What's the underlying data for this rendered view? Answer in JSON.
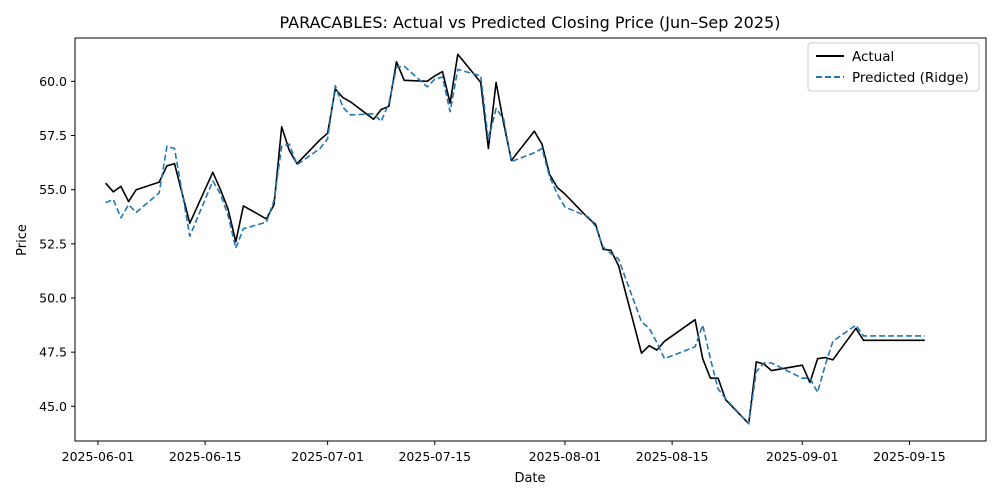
{
  "chart_data": {
    "type": "line",
    "title": "PARACABLES: Actual vs Predicted Closing Price (Jun–Sep 2025)",
    "xlabel": "Date",
    "ylabel": "Price",
    "xlim": [
      "2025-05-29",
      "2025-09-25"
    ],
    "ylim": [
      43.4,
      62.0
    ],
    "x_ticks": [
      "2025-06-01",
      "2025-06-15",
      "2025-07-01",
      "2025-07-15",
      "2025-08-01",
      "2025-08-15",
      "2025-09-01",
      "2025-09-15"
    ],
    "y_ticks": [
      45.0,
      47.5,
      50.0,
      52.5,
      55.0,
      57.5,
      60.0
    ],
    "y_tick_labels": [
      "45.0",
      "47.5",
      "50.0",
      "52.5",
      "55.0",
      "57.5",
      "60.0"
    ],
    "legend_position": "top-right",
    "grid": false,
    "dates": [
      "2025-06-02",
      "2025-06-03",
      "2025-06-04",
      "2025-06-05",
      "2025-06-06",
      "2025-06-09",
      "2025-06-10",
      "2025-06-11",
      "2025-06-13",
      "2025-06-16",
      "2025-06-17",
      "2025-06-18",
      "2025-06-19",
      "2025-06-20",
      "2025-06-23",
      "2025-06-24",
      "2025-06-25",
      "2025-06-26",
      "2025-06-27",
      "2025-06-30",
      "2025-07-01",
      "2025-07-02",
      "2025-07-03",
      "2025-07-04",
      "2025-07-07",
      "2025-07-08",
      "2025-07-09",
      "2025-07-10",
      "2025-07-11",
      "2025-07-14",
      "2025-07-15",
      "2025-07-16",
      "2025-07-17",
      "2025-07-18",
      "2025-07-21",
      "2025-07-22",
      "2025-07-23",
      "2025-07-24",
      "2025-07-25",
      "2025-07-28",
      "2025-07-29",
      "2025-07-30",
      "2025-07-31",
      "2025-08-01",
      "2025-08-04",
      "2025-08-05",
      "2025-08-06",
      "2025-08-07",
      "2025-08-08",
      "2025-08-11",
      "2025-08-12",
      "2025-08-13",
      "2025-08-14",
      "2025-08-18",
      "2025-08-19",
      "2025-08-20",
      "2025-08-21",
      "2025-08-22",
      "2025-08-25",
      "2025-08-26",
      "2025-08-27",
      "2025-08-28",
      "2025-09-01",
      "2025-09-02",
      "2025-09-03",
      "2025-09-04",
      "2025-09-05",
      "2025-09-08",
      "2025-09-09",
      "2025-09-10",
      "2025-09-11",
      "2025-09-12",
      "2025-09-15",
      "2025-09-16",
      "2025-09-17"
    ],
    "series": [
      {
        "name": "Actual",
        "color": "#000000",
        "dash": "solid",
        "values": [
          55.3,
          54.9,
          55.15,
          54.45,
          55.0,
          55.35,
          56.1,
          56.2,
          53.45,
          55.8,
          55.0,
          54.1,
          52.6,
          54.25,
          53.65,
          54.3,
          57.9,
          56.8,
          56.2,
          57.3,
          57.6,
          59.65,
          59.25,
          59.05,
          58.25,
          58.7,
          58.85,
          60.9,
          60.05,
          60.0,
          60.25,
          60.45,
          59.0,
          61.25,
          59.95,
          56.9,
          59.95,
          58.05,
          56.35,
          57.7,
          57.1,
          55.7,
          55.1,
          54.8,
          53.7,
          53.4,
          52.25,
          52.2,
          51.5,
          47.45,
          47.8,
          47.6,
          48.0,
          49.0,
          47.2,
          46.3,
          46.3,
          45.3,
          44.2,
          47.05,
          46.95,
          46.65,
          46.9,
          46.1,
          47.2,
          47.25,
          47.15,
          48.6,
          48.05,
          48.05,
          48.05,
          48.05,
          48.05,
          48.05,
          48.05
        ],
        "values_note": ""
      },
      {
        "name": "Predicted (Ridge)",
        "color": "#1f77b4",
        "dash": "dashed",
        "values": [
          54.4,
          54.55,
          53.7,
          54.3,
          53.95,
          54.85,
          57.0,
          56.9,
          52.85,
          55.4,
          54.8,
          53.8,
          52.3,
          53.2,
          53.5,
          54.5,
          57.0,
          57.1,
          56.15,
          56.9,
          57.35,
          59.8,
          58.8,
          58.45,
          58.5,
          58.15,
          59.0,
          60.65,
          60.7,
          59.75,
          60.1,
          60.2,
          58.6,
          60.55,
          60.25,
          57.3,
          58.75,
          58.25,
          56.3,
          56.7,
          56.9,
          55.6,
          54.8,
          54.2,
          53.75,
          53.3,
          52.35,
          52.05,
          51.8,
          48.9,
          48.6,
          47.95,
          47.2,
          47.75,
          48.75,
          47.2,
          45.8,
          45.35,
          44.2,
          46.6,
          47.0,
          47.0,
          46.3,
          46.3,
          45.65,
          46.9,
          48.0,
          48.75,
          48.25,
          48.25,
          48.25,
          48.25,
          48.25,
          48.25,
          48.25
        ]
      }
    ]
  }
}
